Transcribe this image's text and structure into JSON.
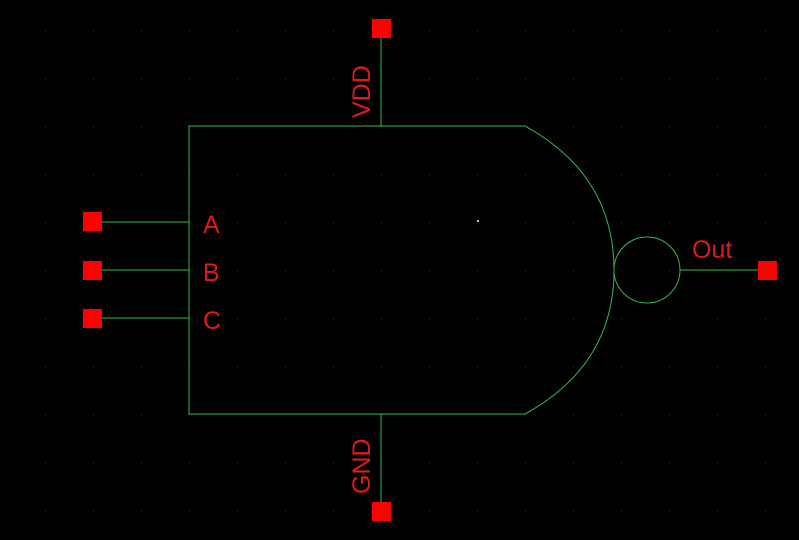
{
  "schematic": {
    "symbol": "nand3",
    "colors": {
      "background": "#000000",
      "wire": "#2fb84f",
      "pin": "#ff0000",
      "label": "#e01a1a",
      "grid_dot": "#3a3a3a"
    },
    "pins": {
      "vdd": "VDD",
      "gnd": "GND",
      "a": "A",
      "b": "B",
      "c": "C",
      "out": "Out"
    }
  }
}
